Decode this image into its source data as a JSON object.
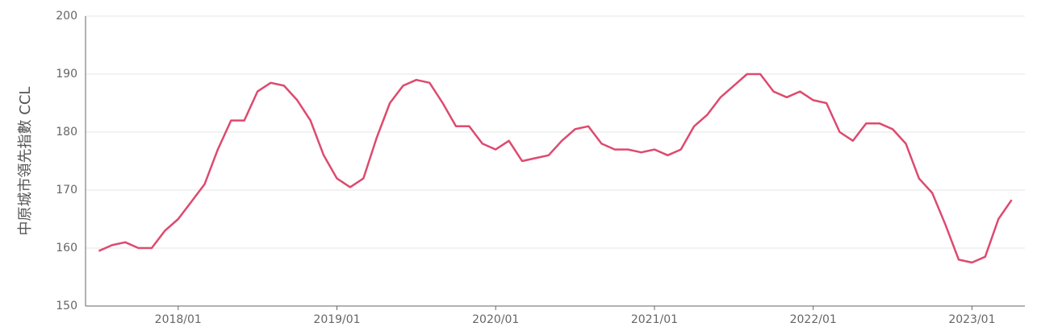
{
  "chart_data": {
    "type": "line",
    "y_label": "中原城市領先指數 CCL",
    "x": [
      "2017/07",
      "2017/08",
      "2017/09",
      "2017/10",
      "2017/11",
      "2017/12",
      "2018/01",
      "2018/02",
      "2018/03",
      "2018/04",
      "2018/05",
      "2018/06",
      "2018/07",
      "2018/08",
      "2018/09",
      "2018/10",
      "2018/11",
      "2018/12",
      "2019/01",
      "2019/02",
      "2019/03",
      "2019/04",
      "2019/05",
      "2019/06",
      "2019/07",
      "2019/08",
      "2019/09",
      "2019/10",
      "2019/11",
      "2019/12",
      "2020/01",
      "2020/02",
      "2020/03",
      "2020/04",
      "2020/05",
      "2020/06",
      "2020/07",
      "2020/08",
      "2020/09",
      "2020/10",
      "2020/11",
      "2020/12",
      "2021/01",
      "2021/02",
      "2021/03",
      "2021/04",
      "2021/05",
      "2021/06",
      "2021/07",
      "2021/08",
      "2021/09",
      "2021/10",
      "2021/11",
      "2021/12",
      "2022/01",
      "2022/02",
      "2022/03",
      "2022/04",
      "2022/05",
      "2022/06",
      "2022/07",
      "2022/08",
      "2022/09",
      "2022/10",
      "2022/11",
      "2022/12",
      "2023/01",
      "2023/02",
      "2023/03",
      "2023/04"
    ],
    "series": [
      {
        "name": "CCL",
        "color": "#dd4a6f",
        "values": [
          159.5,
          160.5,
          161,
          160,
          160,
          163,
          165,
          168,
          171,
          177,
          182,
          182,
          187,
          188.5,
          188,
          185.5,
          182,
          176,
          172,
          170.5,
          172,
          179,
          185,
          188,
          189,
          188.5,
          185,
          181,
          181,
          178,
          177,
          178.5,
          175,
          175.5,
          176,
          178.5,
          180.5,
          181,
          178,
          177,
          177,
          176.5,
          177,
          176,
          177,
          181,
          183,
          186,
          188,
          190,
          190,
          187,
          186,
          187,
          185.5,
          185,
          180,
          178.5,
          181.5,
          181.5,
          180.5,
          178,
          172,
          169.5,
          164,
          158,
          157.5,
          158.5,
          165,
          168.3
        ]
      }
    ],
    "xlim": [
      "2017/06",
      "2023/05"
    ],
    "xticks": [
      "2018/01",
      "2019/01",
      "2020/01",
      "2021/01",
      "2022/01",
      "2023/01"
    ],
    "ylim": [
      150,
      200
    ],
    "yticks": [
      150,
      160,
      170,
      180,
      190,
      200
    ],
    "grid": true
  }
}
